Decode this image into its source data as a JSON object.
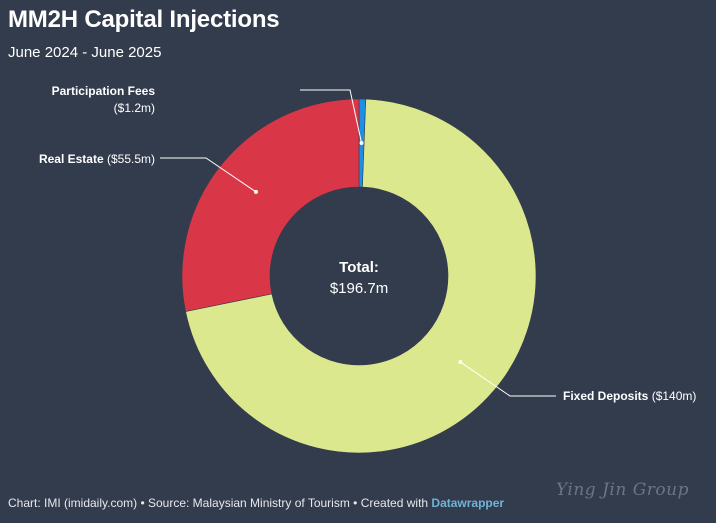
{
  "header": {
    "title": "MM2H Capital Injections",
    "subtitle": "June 2024 - June 2025"
  },
  "chart_data": {
    "type": "pie",
    "variant": "donut",
    "title": "MM2H Capital Injections",
    "subtitle": "June 2024 - June 2025",
    "unit": "$m",
    "slices": [
      {
        "name": "Participation Fees",
        "value": 1.2,
        "value_label": "($1.2m)",
        "color": "#1f8fe5"
      },
      {
        "name": "Fixed Deposits",
        "value": 140,
        "value_label": "($140m)",
        "color": "#dce88e"
      },
      {
        "name": "Real Estate",
        "value": 55.5,
        "value_label": "($55.5m)",
        "color": "#d93747"
      }
    ],
    "center_label": "Total:",
    "center_value": "$196.7m"
  },
  "footer": {
    "chart_credit": "Chart: IMI (imidaily.com) • Source: Malaysian Ministry of Tourism • Created with ",
    "tool": "Datawrapper"
  },
  "watermark": "Ying Jin Group"
}
